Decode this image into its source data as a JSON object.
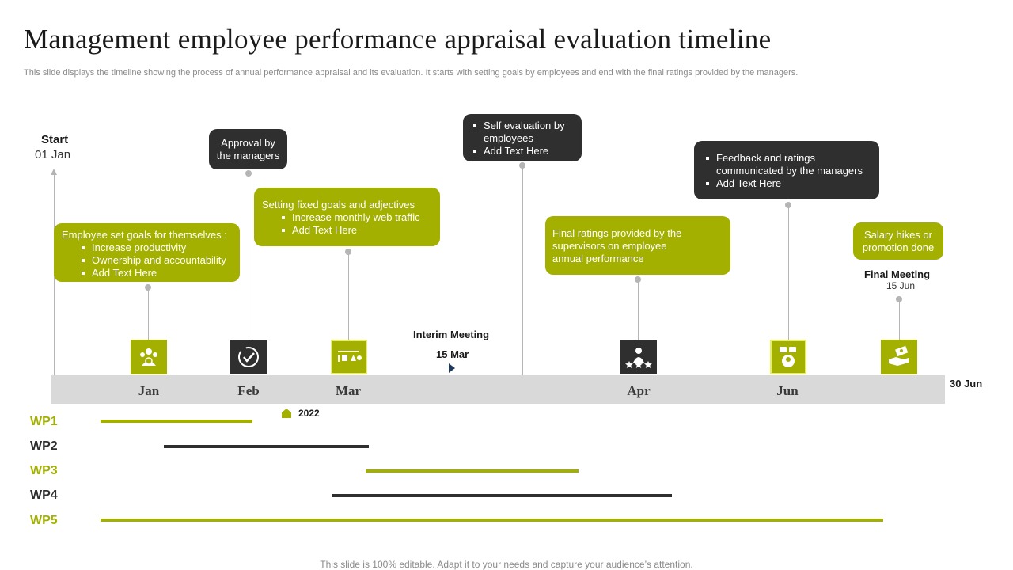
{
  "title": "Management employee performance appraisal evaluation timeline",
  "subtitle": "This slide displays the timeline showing the process of  annual performance appraisal and its evaluation. It starts with setting goals by employees and end with the final ratings provided by the managers.",
  "footer": "This slide is 100% editable. Adapt it to your needs and capture your audience’s attention.",
  "start": {
    "label": "Start",
    "date": "01 Jan"
  },
  "end_label": "30 Jun",
  "year_label": "2022",
  "months": [
    "Jan",
    "Feb",
    "Mar",
    "Apr",
    "Jun"
  ],
  "callouts": {
    "jan": {
      "intro": "Employee set goals for themselves :",
      "bullets": [
        "Increase productivity",
        "Ownership and accountability",
        "Add Text Here"
      ]
    },
    "feb": {
      "text_line1": "Approval  by",
      "text_line2": "the managers"
    },
    "mar": {
      "intro": "Setting fixed goals and adjectives",
      "bullets": [
        "Increase monthly web traffic",
        "Add Text Here"
      ]
    },
    "self_eval": {
      "bullet1_line1": "Self evaluation  by",
      "bullet1_line2": "employees",
      "bullet2": "Add Text Here"
    },
    "apr": {
      "line1": "Final ratings provided  by the",
      "line2": "supervisors  on employee",
      "line3": "annual performance"
    },
    "jun": {
      "bullet1_line1": "Feedback and ratings",
      "bullet1_line2": "communicated by the managers",
      "bullet2": "Add Text Here"
    },
    "salary": {
      "line1": "Salary hikes or",
      "line2": "promotion done"
    }
  },
  "milestones": {
    "interim": {
      "label": "Interim Meeting",
      "date": "15 Mar"
    },
    "final": {
      "label": "Final Meeting",
      "date": "15 Jun"
    }
  },
  "icons": {
    "jan": "team-goals-icon",
    "feb": "checkmark-approval-icon",
    "mar": "shapes-goals-icon",
    "apr": "employee-rating-stars-icon",
    "jun": "feedback-chat-icon",
    "salary": "money-hand-icon"
  },
  "work_packages": [
    {
      "label": "WP1",
      "color": "#a3b000"
    },
    {
      "label": "WP2",
      "color": "#2f2f2f"
    },
    {
      "label": "WP3",
      "color": "#a3b000"
    },
    {
      "label": "WP4",
      "color": "#2f2f2f"
    },
    {
      "label": "WP5",
      "color": "#a3b000"
    }
  ],
  "colors": {
    "accent": "#a3b000",
    "dark": "#2f2f2f",
    "band": "#d9d9d9",
    "connector": "#b5b5b5",
    "milestone_arrow": "#1f3a5a"
  }
}
